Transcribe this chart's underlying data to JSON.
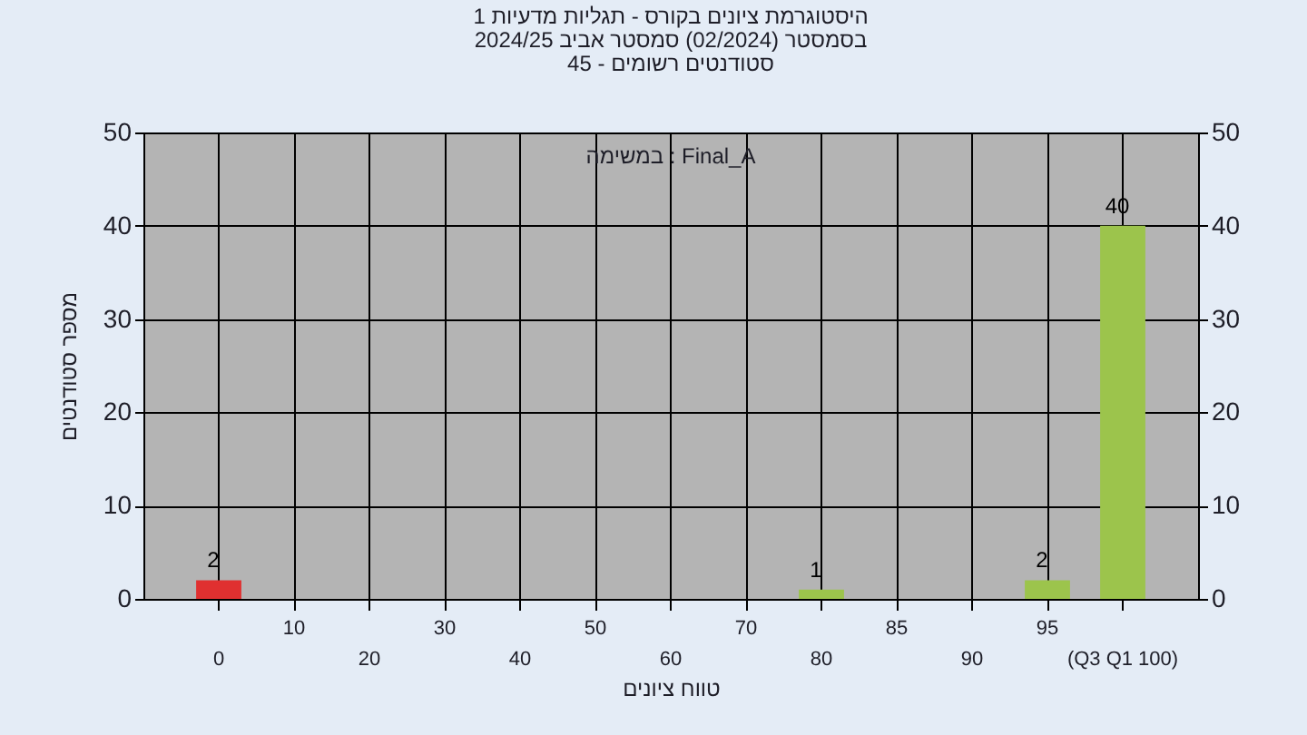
{
  "chart_data": {
    "type": "bar",
    "title": "היסטוגרמת ציונים בקורס - תגליות מדעיות 1",
    "subtitle": "בסמסטר (02/2024) סמסטר אביב 2024/25\nסטודנטים רשומים - 45",
    "xlabel": "טווח ציונים",
    "ylabel": "מספר סטודנטים",
    "categories": [
      "0",
      "10",
      "20",
      "30",
      "40",
      "50",
      "60",
      "70",
      "80",
      "85",
      "90",
      "95",
      "(Q3 Q1 100)"
    ],
    "values": [
      2,
      0,
      0,
      0,
      0,
      0,
      0,
      0,
      1,
      0,
      0,
      2,
      40
    ],
    "value_labels": [
      "2",
      null,
      null,
      null,
      null,
      null,
      null,
      null,
      "1",
      null,
      null,
      "2",
      "40"
    ],
    "colors": [
      "#e03030",
      "#9cc44c",
      "#9cc44c",
      "#9cc44c",
      "#9cc44c",
      "#9cc44c",
      "#9cc44c",
      "#9cc44c",
      "#9cc44c",
      "#9cc44c",
      "#9cc44c",
      "#9cc44c",
      "#9cc44c"
    ],
    "ylim": [
      0,
      50
    ],
    "yticks": [
      0,
      10,
      20,
      30,
      40,
      50
    ],
    "y2lim": [
      0,
      50
    ],
    "y2ticks": [
      0,
      10,
      20,
      30,
      40,
      50
    ],
    "grid": true,
    "annotations": [
      "במשימה : Final_A"
    ]
  }
}
